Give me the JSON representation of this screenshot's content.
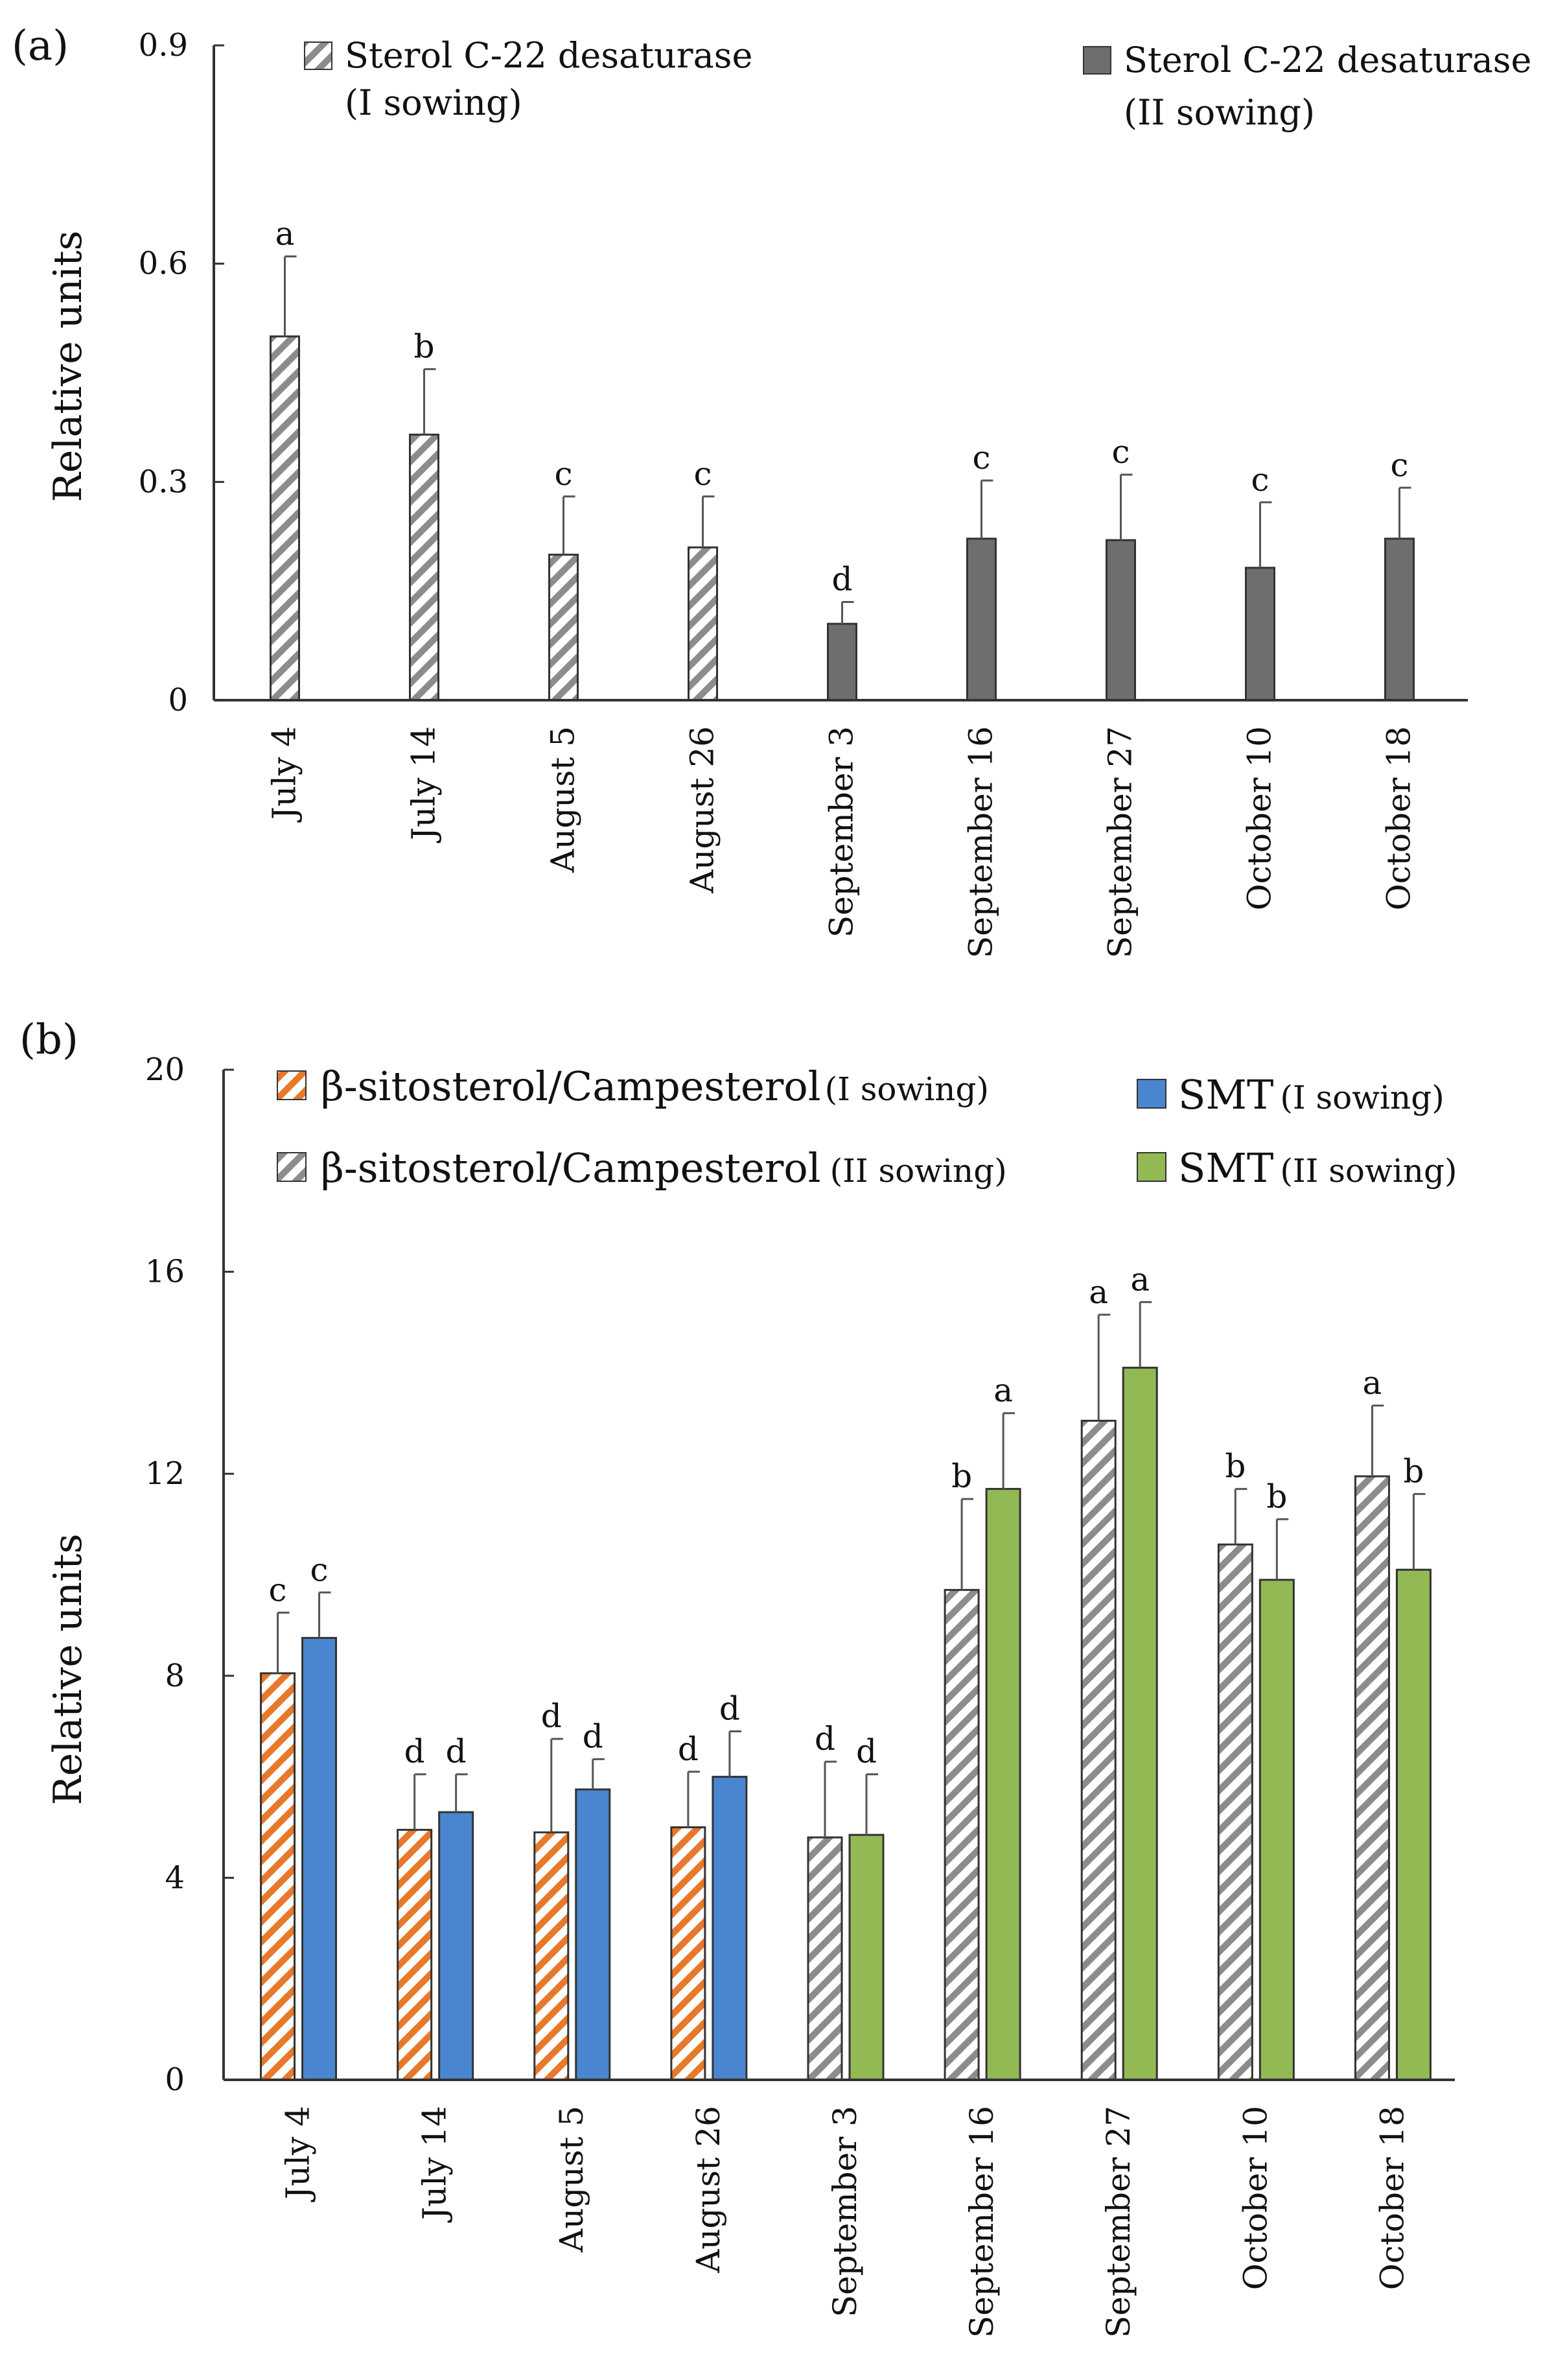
{
  "chart_data": [
    {
      "panel": "(a)",
      "type": "bar",
      "ylabel": "Relative units",
      "ylim": [
        0,
        0.9
      ],
      "yticks": [
        "0",
        "0.3",
        "0.6",
        "0.9"
      ],
      "categories": [
        "July 4",
        "July 14",
        "August 5",
        "August 26",
        "September 3",
        "September 16",
        "September 27",
        "October 10",
        "October 18"
      ],
      "series": [
        {
          "name": "Sterol C-22 desaturase (I sowing)",
          "legend_line1": "Sterol C-22 desaturase",
          "legend_line2": "(I sowing)",
          "pattern": "hatch-grey",
          "values": [
            0.5,
            0.365,
            0.2,
            0.21,
            null,
            null,
            null,
            null,
            null
          ],
          "errors": [
            0.11,
            0.09,
            0.08,
            0.07,
            null,
            null,
            null,
            null,
            null
          ],
          "letters": [
            "a",
            "b",
            "c",
            "c",
            null,
            null,
            null,
            null,
            null
          ]
        },
        {
          "name": "Sterol C-22 desaturase (II sowing)",
          "legend_line1": "Sterol C-22 desaturase",
          "legend_line2": "(II sowing)",
          "pattern": "solid-grey",
          "values": [
            null,
            null,
            null,
            null,
            0.105,
            0.222,
            0.22,
            0.182,
            0.222
          ],
          "errors": [
            null,
            null,
            null,
            null,
            0.03,
            0.08,
            0.09,
            0.09,
            0.07
          ],
          "letters": [
            null,
            null,
            null,
            null,
            "d",
            "c",
            "c",
            "c",
            "c"
          ]
        }
      ]
    },
    {
      "panel": "(b)",
      "type": "bar",
      "ylabel": "Relative units",
      "ylim": [
        0,
        20
      ],
      "yticks": [
        "0",
        "4",
        "8",
        "12",
        "16",
        "20"
      ],
      "categories": [
        "July 4",
        "July 14",
        "August 5",
        "August 26",
        "September 3",
        "September 16",
        "September 27",
        "October 10",
        "October 18"
      ],
      "legend": [
        {
          "label": "β-sitosterol/Campesterol",
          "sub": "(I sowing)",
          "pattern": "hatch-orange"
        },
        {
          "label": "β-sitosterol/Campesterol",
          "sub": "(II sowing)",
          "pattern": "hatch-grey"
        },
        {
          "label": "SMT",
          "sub": "(I sowing)",
          "pattern": "solid-blue"
        },
        {
          "label": "SMT",
          "sub": "(II sowing)",
          "pattern": "solid-green"
        }
      ],
      "groups": [
        {
          "ratio": 8.05,
          "ratio_err": 1.2,
          "ratio_letter": "c",
          "smt": 8.75,
          "smt_err": 0.9,
          "smt_letter": "c",
          "sowing": "I"
        },
        {
          "ratio": 4.95,
          "ratio_err": 1.1,
          "ratio_letter": "d",
          "smt": 5.3,
          "smt_err": 0.75,
          "smt_letter": "d",
          "sowing": "I"
        },
        {
          "ratio": 4.9,
          "ratio_err": 1.85,
          "ratio_letter": "d",
          "smt": 5.75,
          "smt_err": 0.6,
          "smt_letter": "d",
          "sowing": "I"
        },
        {
          "ratio": 5.0,
          "ratio_err": 1.1,
          "ratio_letter": "d",
          "smt": 6.0,
          "smt_err": 0.9,
          "smt_letter": "d",
          "sowing": "I"
        },
        {
          "ratio": 4.8,
          "ratio_err": 1.5,
          "ratio_letter": "d",
          "smt": 4.85,
          "smt_err": 1.2,
          "smt_letter": "d",
          "sowing": "II"
        },
        {
          "ratio": 9.7,
          "ratio_err": 1.8,
          "ratio_letter": "b",
          "smt": 11.7,
          "smt_err": 1.5,
          "smt_letter": "a",
          "sowing": "II"
        },
        {
          "ratio": 13.05,
          "ratio_err": 2.1,
          "ratio_letter": "a",
          "smt": 14.1,
          "smt_err": 1.3,
          "smt_letter": "a",
          "sowing": "II"
        },
        {
          "ratio": 10.6,
          "ratio_err": 1.1,
          "ratio_letter": "b",
          "smt": 9.9,
          "smt_err": 1.2,
          "smt_letter": "b",
          "sowing": "II"
        },
        {
          "ratio": 11.95,
          "ratio_err": 1.4,
          "ratio_letter": "a",
          "smt": 10.1,
          "smt_err": 1.5,
          "smt_letter": "b",
          "sowing": "II"
        }
      ]
    }
  ],
  "colors": {
    "orange": "#e8782a",
    "blue": "#4a86cf",
    "green": "#93b955",
    "grey_hatch": "#8c8c8c",
    "solid_grey": "#6e6e6e",
    "axis": "#333333",
    "error": "#555555"
  }
}
